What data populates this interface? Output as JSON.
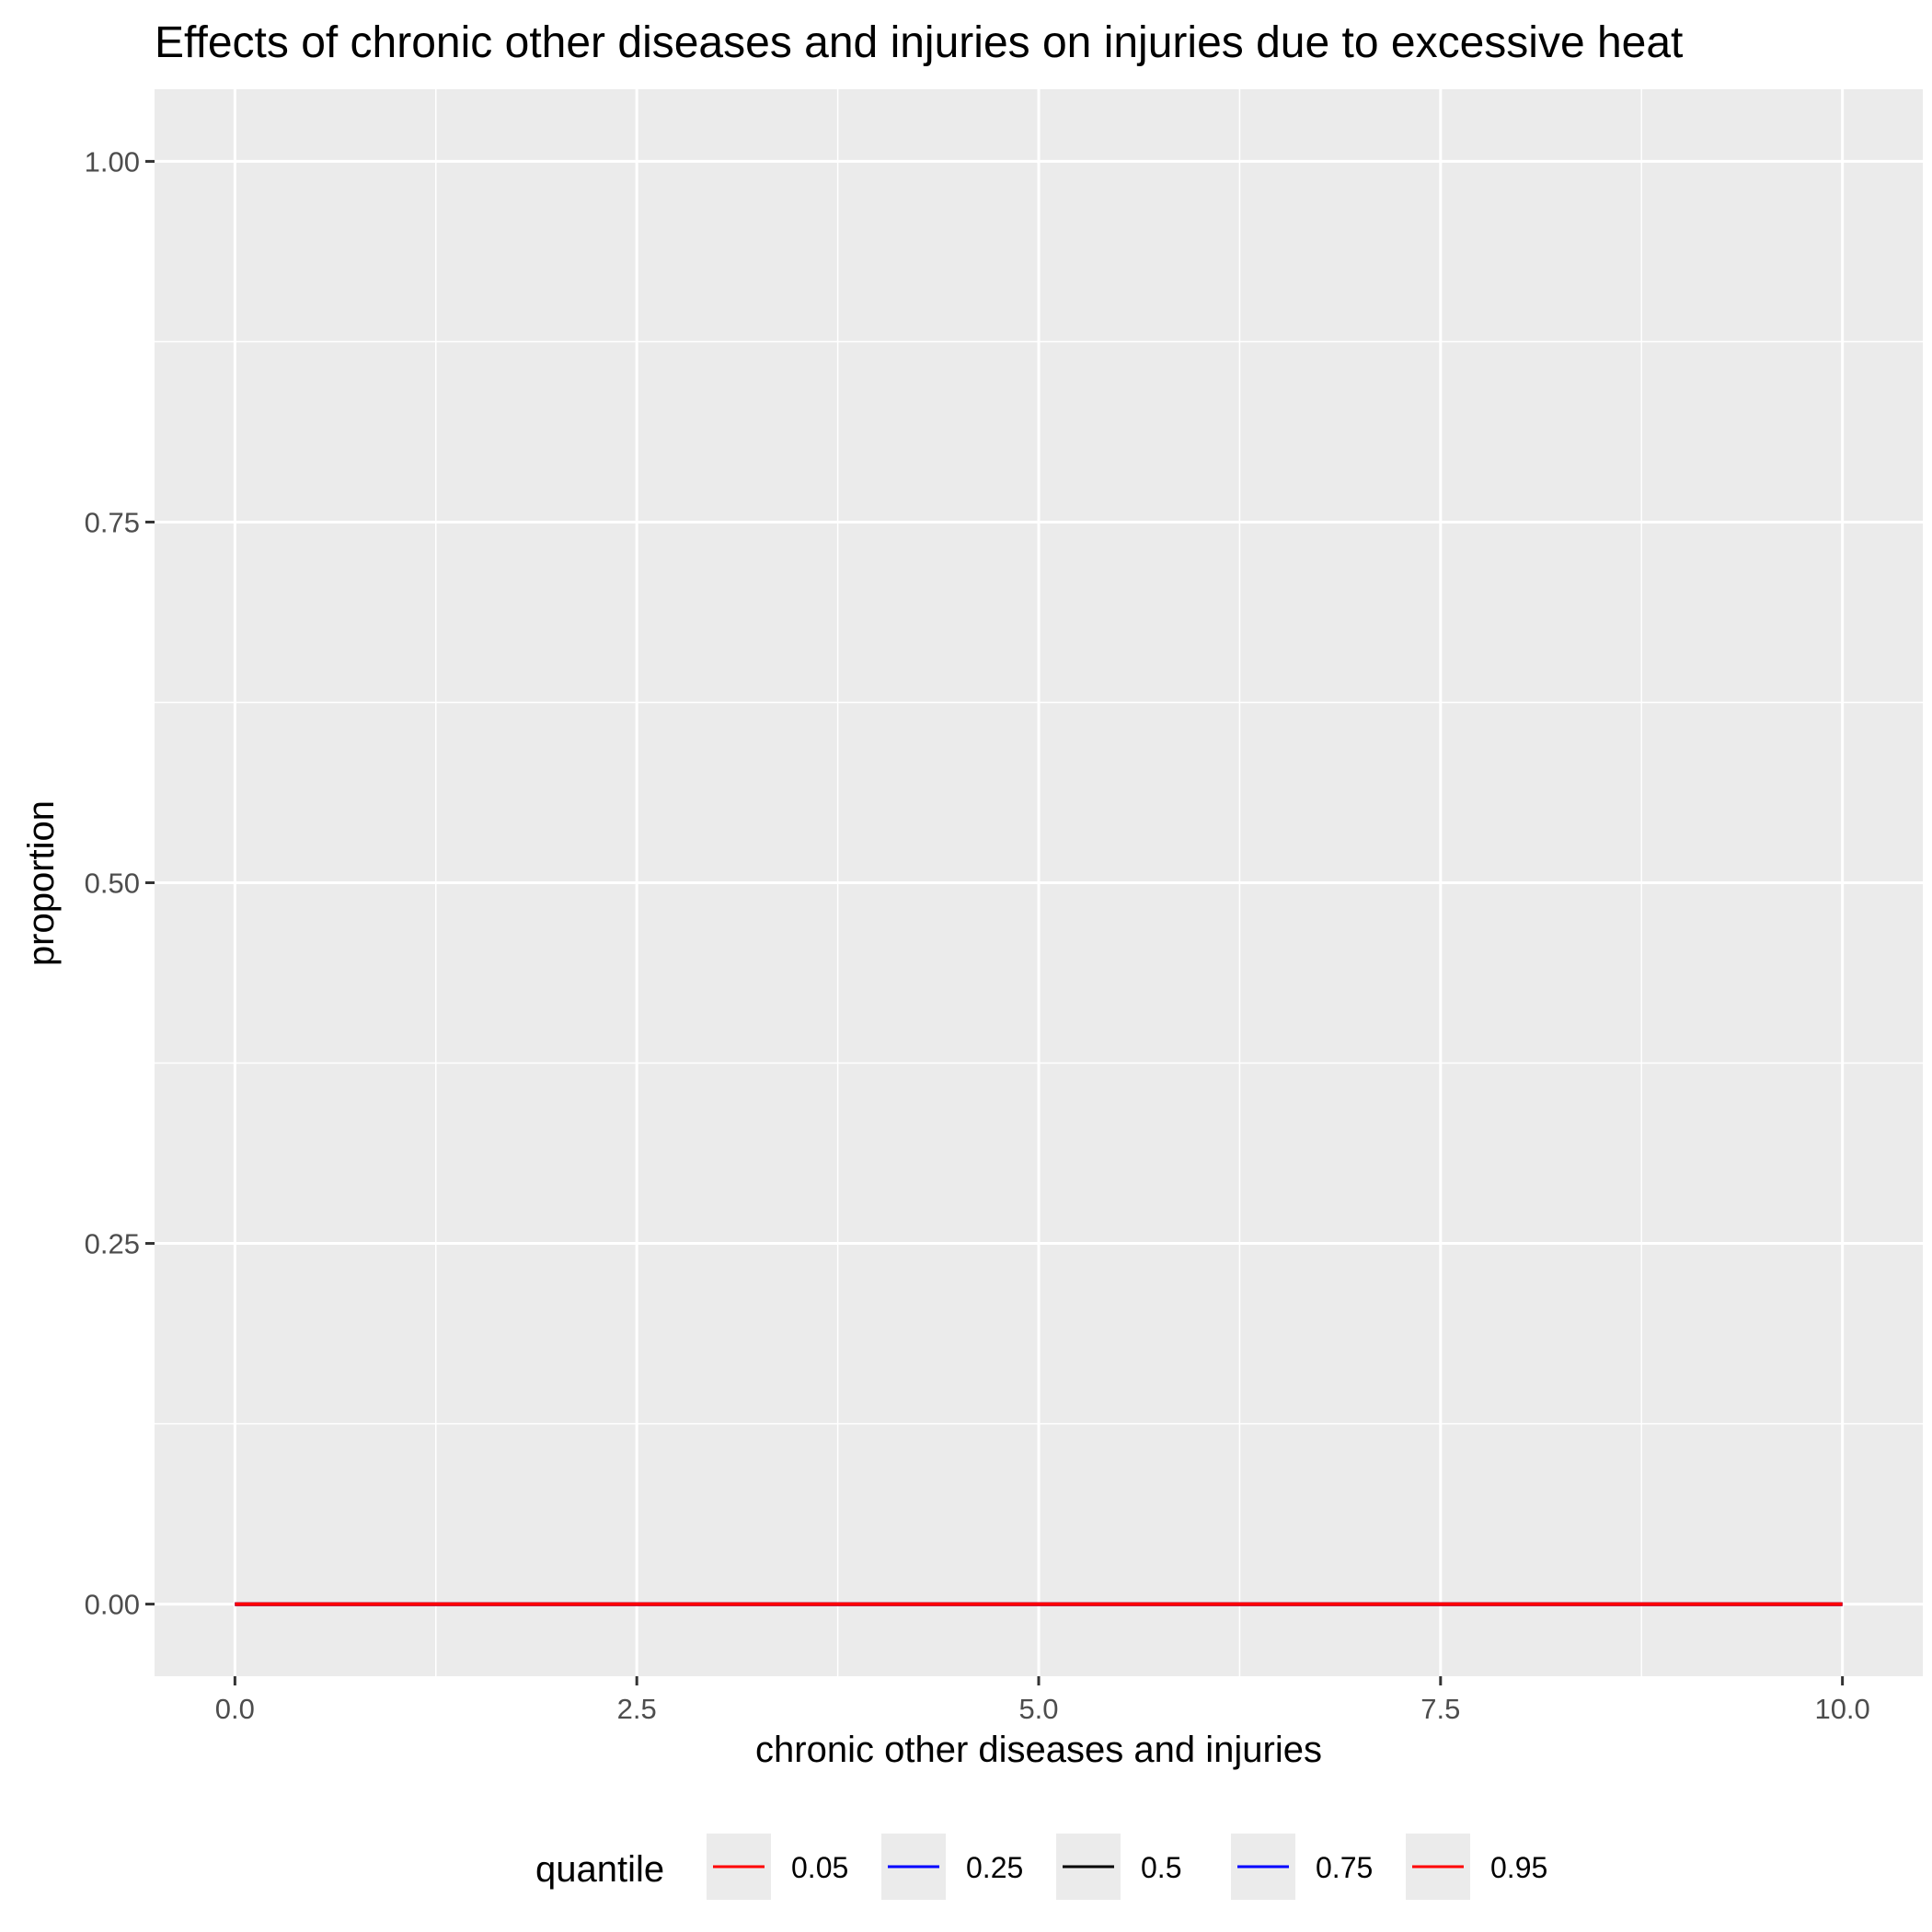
{
  "chart_data": {
    "type": "line",
    "title": "Effects of chronic other diseases and injuries on injuries due to excessive heat",
    "xlabel": "chronic other diseases and injuries",
    "ylabel": "proportion",
    "xlim": [
      -0.5,
      10.5
    ],
    "ylim": [
      -0.05,
      1.05
    ],
    "x_ticks": [
      0.0,
      2.5,
      5.0,
      7.5,
      10.0
    ],
    "x_tick_labels": [
      "0.0",
      "2.5",
      "5.0",
      "7.5",
      "10.0"
    ],
    "y_ticks": [
      0.0,
      0.25,
      0.5,
      0.75,
      1.0
    ],
    "y_tick_labels": [
      "0.00",
      "0.25",
      "0.50",
      "0.75",
      "1.00"
    ],
    "grid": true,
    "legend": {
      "title": "quantile",
      "placement": "bottom"
    },
    "x": [
      0,
      10
    ],
    "series": [
      {
        "name": "0.05",
        "color": "#ff0000",
        "values": [
          0,
          0
        ]
      },
      {
        "name": "0.25",
        "color": "#0000ff",
        "values": [
          0,
          0
        ]
      },
      {
        "name": "0.5",
        "color": "#000000",
        "values": [
          0,
          0
        ]
      },
      {
        "name": "0.75",
        "color": "#0000ff",
        "values": [
          0,
          0
        ]
      },
      {
        "name": "0.95",
        "color": "#ff0000",
        "values": [
          0,
          0
        ]
      }
    ],
    "colors": {
      "panel_background": "#ebebeb",
      "grid": "#ffffff",
      "tick_text": "#4d4d4d",
      "tick_mark": "#333333"
    }
  }
}
